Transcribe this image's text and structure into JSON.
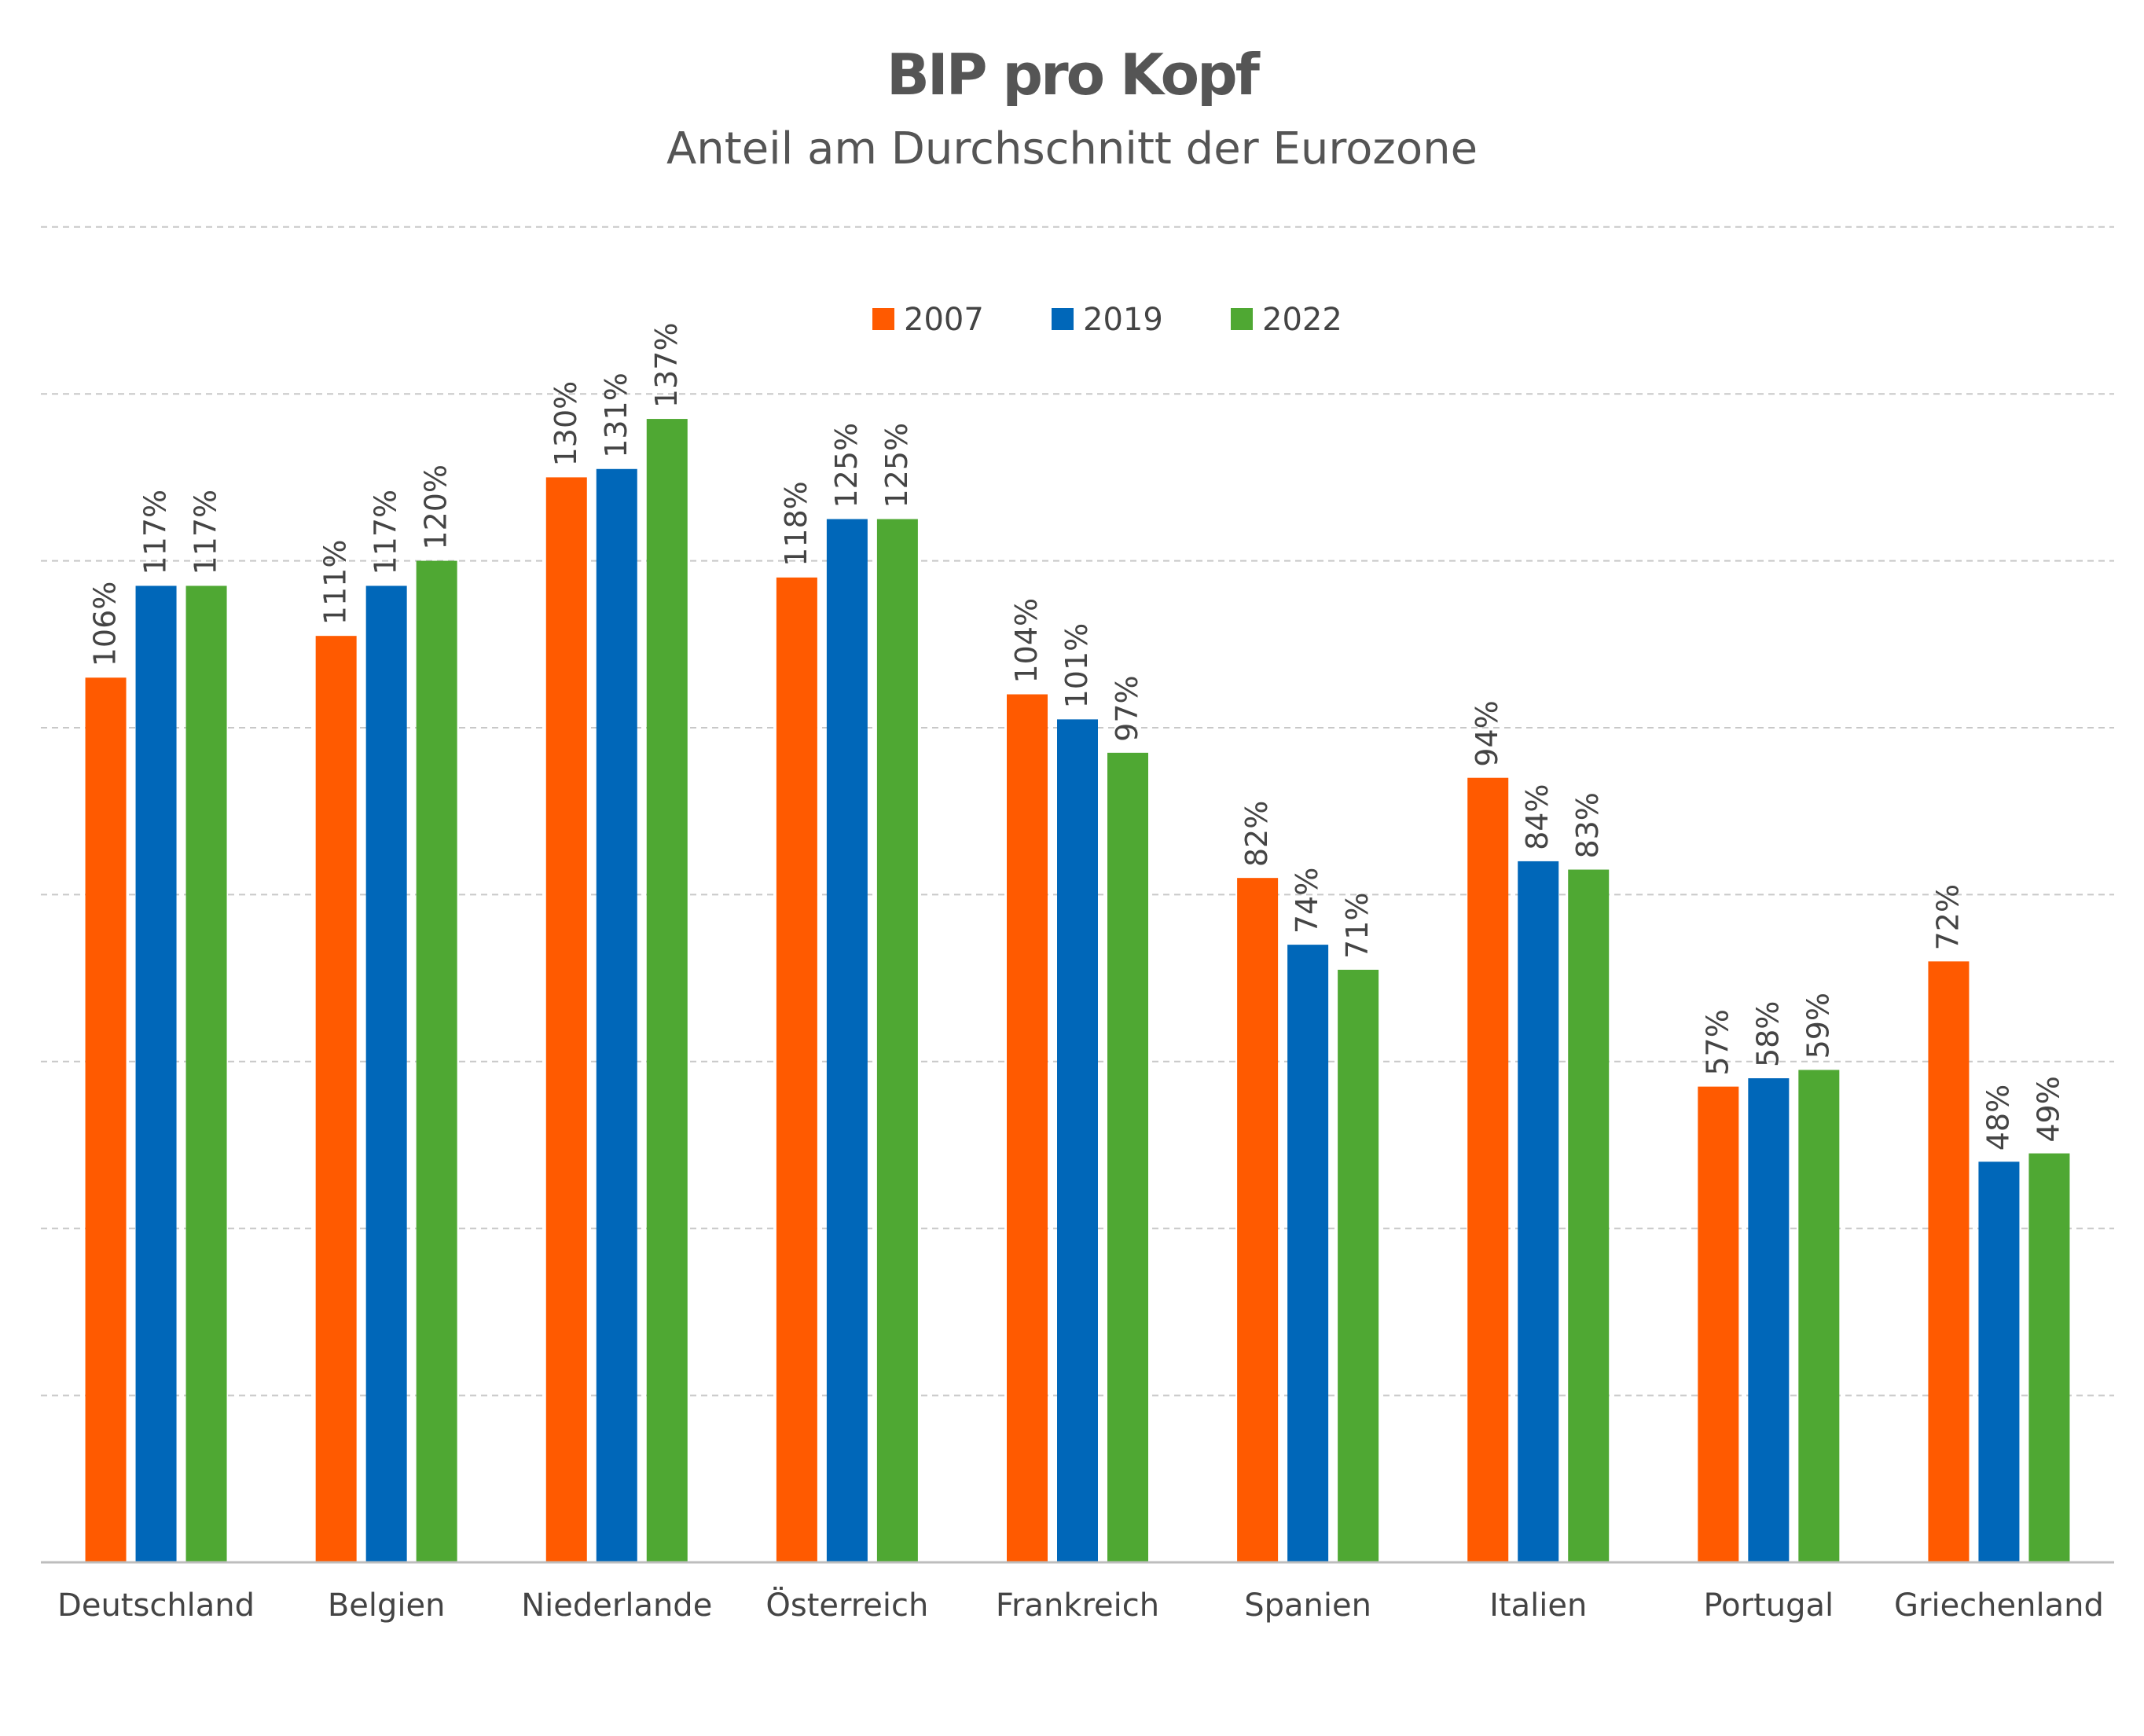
{
  "chart_data": {
    "type": "bar",
    "title": "BIP pro Kopf",
    "subtitle": "Anteil am Durchschnitt der Eurozone",
    "categories": [
      "Deutschland",
      "Belgien",
      "Niederlande",
      "Österreich",
      "Frankreich",
      "Spanien",
      "Italien",
      "Portugal",
      "Griechenland"
    ],
    "series": [
      {
        "name": "2007",
        "color": "#ff5a00",
        "values": [
          106,
          111,
          130,
          118,
          104,
          82,
          94,
          57,
          72
        ]
      },
      {
        "name": "2019",
        "color": "#0067b9",
        "values": [
          117,
          117,
          131,
          125,
          101,
          74,
          84,
          58,
          48
        ]
      },
      {
        "name": "2022",
        "color": "#4fa833",
        "values": [
          117,
          120,
          137,
          125,
          97,
          71,
          83,
          59,
          49
        ]
      }
    ],
    "data_label_suffix": "%",
    "ylim": [
      0,
      160
    ],
    "grid_step": 20,
    "grid": true,
    "legend_position": "top-center",
    "xlabel": "",
    "ylabel": ""
  }
}
